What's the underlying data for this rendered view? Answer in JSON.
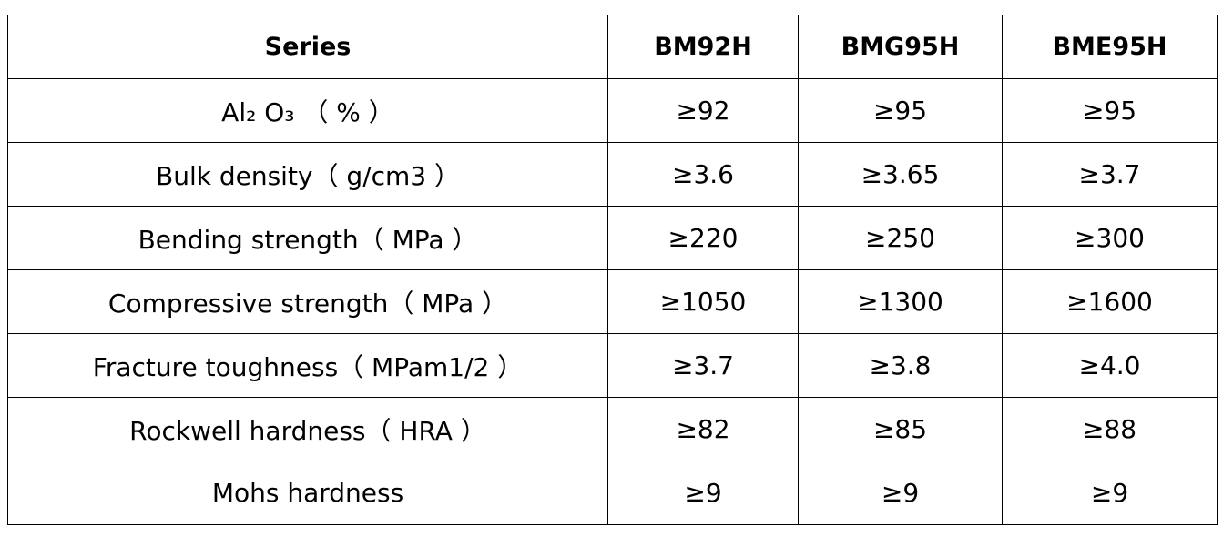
{
  "table": {
    "header": [
      "Series",
      "BM92H",
      "BMG95H",
      "BME95H"
    ],
    "rows": [
      [
        "Al₂ O₃ （ % ）",
        "≥92",
        "≥95",
        "≥95"
      ],
      [
        "Bulk density（ g/cm3 ）",
        "≥3.6",
        "≥3.65",
        "≥3.7"
      ],
      [
        "Bending strength（ MPa ）",
        "≥220",
        "≥250",
        "≥300"
      ],
      [
        "Compressive strength（ MPa ）",
        "≥1050",
        "≥1300",
        "≥1600"
      ],
      [
        "Fracture toughness（ MPam1/2 ）",
        "≥3.7",
        "≥3.8",
        "≥4.0"
      ],
      [
        "Rockwell hardness（ HRA ）",
        "≥82",
        "≥85",
        "≥88"
      ],
      [
        "Mohs hardness",
        "≥9",
        "≥9",
        "≥9"
      ]
    ]
  }
}
